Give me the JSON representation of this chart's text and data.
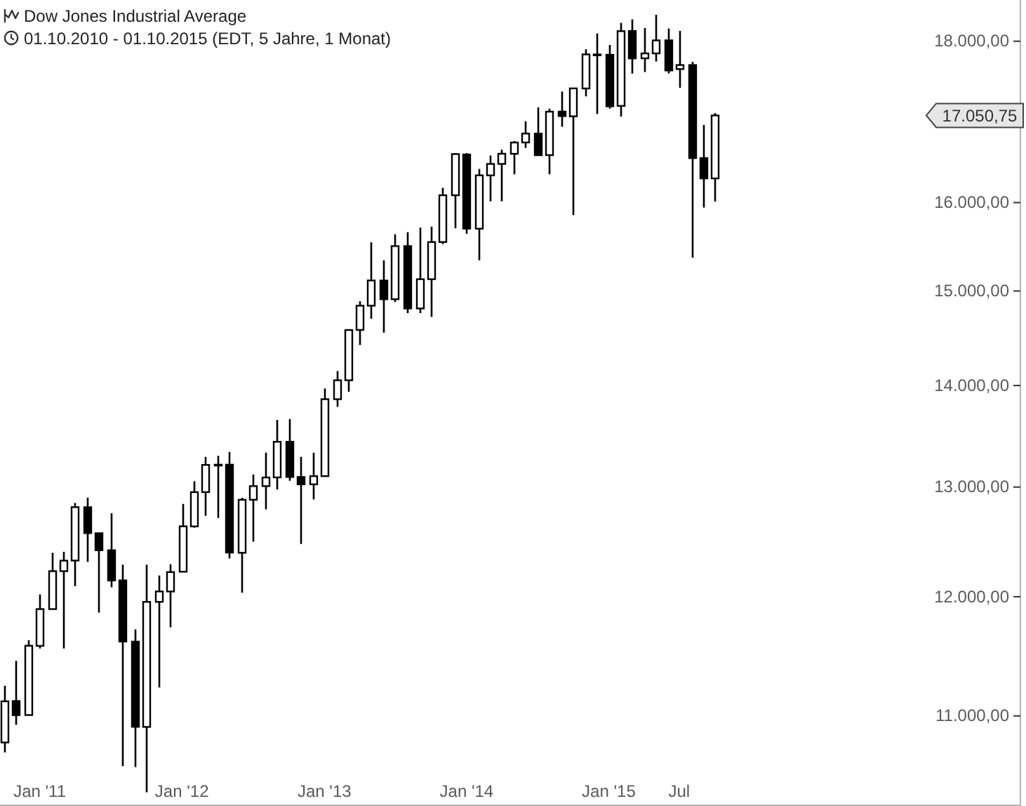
{
  "chart_data": {
    "type": "candlestick",
    "title": "Dow Jones Industrial Average",
    "subtitle": "01.10.2010 - 01.10.2015 (EDT, 5 Jahre, 1 Monat)",
    "x": [
      "2010-10",
      "2010-11",
      "2010-12",
      "2011-01",
      "2011-02",
      "2011-03",
      "2011-04",
      "2011-05",
      "2011-06",
      "2011-07",
      "2011-08",
      "2011-09",
      "2011-10",
      "2011-11",
      "2011-12",
      "2012-01",
      "2012-02",
      "2012-03",
      "2012-04",
      "2012-05",
      "2012-06",
      "2012-07",
      "2012-08",
      "2012-09",
      "2012-10",
      "2012-11",
      "2012-12",
      "2013-01",
      "2013-02",
      "2013-03",
      "2013-04",
      "2013-05",
      "2013-06",
      "2013-07",
      "2013-08",
      "2013-09",
      "2013-10",
      "2013-11",
      "2013-12",
      "2014-01",
      "2014-02",
      "2014-03",
      "2014-04",
      "2014-05",
      "2014-06",
      "2014-07",
      "2014-08",
      "2014-09",
      "2014-10",
      "2014-11",
      "2014-12",
      "2015-01",
      "2015-02",
      "2015-03",
      "2015-04",
      "2015-05",
      "2015-06",
      "2015-07",
      "2015-08",
      "2015-09",
      "2015-10"
    ],
    "ohlc": [
      [
        10789,
        11245,
        10711,
        11118
      ],
      [
        11120,
        11451,
        10929,
        11006
      ],
      [
        11007,
        11625,
        11007,
        11578
      ],
      [
        11577,
        12020,
        11555,
        11892
      ],
      [
        11892,
        12391,
        11891,
        12226
      ],
      [
        12226,
        12400,
        11555,
        12320
      ],
      [
        12321,
        12850,
        12093,
        12811
      ],
      [
        12810,
        12900,
        12309,
        12570
      ],
      [
        12569,
        12570,
        11862,
        12414
      ],
      [
        12414,
        12754,
        12083,
        12143
      ],
      [
        12144,
        12284,
        10604,
        11614
      ],
      [
        11613,
        11717,
        10597,
        10913
      ],
      [
        10912,
        12284,
        10404,
        11955
      ],
      [
        11955,
        12187,
        11231,
        12046
      ],
      [
        12046,
        12288,
        11735,
        12218
      ],
      [
        12221,
        12841,
        12221,
        12633
      ],
      [
        12632,
        13055,
        12620,
        12952
      ],
      [
        12952,
        13289,
        12730,
        13212
      ],
      [
        13212,
        13300,
        12710,
        13214
      ],
      [
        13214,
        13338,
        12340,
        12393
      ],
      [
        12391,
        12898,
        12035,
        12880
      ],
      [
        12880,
        13120,
        12492,
        13009
      ],
      [
        13009,
        13331,
        12790,
        13091
      ],
      [
        13092,
        13653,
        12977,
        13437
      ],
      [
        13437,
        13662,
        13060,
        13096
      ],
      [
        13096,
        13290,
        12471,
        13026
      ],
      [
        13026,
        13330,
        12883,
        13104
      ],
      [
        13104,
        13970,
        13104,
        13861
      ],
      [
        13861,
        14149,
        13784,
        14054
      ],
      [
        14054,
        14585,
        13937,
        14579
      ],
      [
        14580,
        14888,
        14420,
        14840
      ],
      [
        14840,
        15543,
        14700,
        15116
      ],
      [
        15115,
        15340,
        14551,
        14910
      ],
      [
        14911,
        15634,
        14880,
        15500
      ],
      [
        15500,
        15658,
        14760,
        14810
      ],
      [
        14810,
        15710,
        14760,
        15130
      ],
      [
        15130,
        15722,
        14719,
        15546
      ],
      [
        15546,
        16174,
        15523,
        16086
      ],
      [
        16086,
        16589,
        15703,
        16577
      ],
      [
        16572,
        16588,
        15640,
        15699
      ],
      [
        15698,
        16398,
        15340,
        16322
      ],
      [
        16321,
        16560,
        16015,
        16458
      ],
      [
        16458,
        16630,
        16015,
        16581
      ],
      [
        16580,
        16736,
        16334,
        16717
      ],
      [
        16718,
        16978,
        16652,
        16827
      ],
      [
        16827,
        17152,
        16563,
        16563
      ],
      [
        16564,
        17136,
        16334,
        17098
      ],
      [
        17099,
        17351,
        16911,
        17043
      ],
      [
        17040,
        17395,
        15855,
        17391
      ],
      [
        17390,
        17895,
        17290,
        17828
      ],
      [
        17827,
        18103,
        17068,
        17823
      ],
      [
        17823,
        17951,
        17136,
        17165
      ],
      [
        17170,
        18244,
        17037,
        18133
      ],
      [
        18135,
        18289,
        17580,
        17776
      ],
      [
        17777,
        18175,
        17600,
        17841
      ],
      [
        17841,
        18351,
        17736,
        18011
      ],
      [
        18012,
        18168,
        17582,
        17620
      ],
      [
        17638,
        18137,
        17399,
        17690
      ],
      [
        17690,
        17733,
        15370,
        16528
      ],
      [
        16528,
        16933,
        15942,
        16285
      ],
      [
        16285,
        17080,
        16013,
        17050.75
      ]
    ],
    "xlim": [
      "2010-09-21",
      "2017-11-23"
    ],
    "xticks": [
      {
        "value": "2011-01",
        "label": "Jan '11"
      },
      {
        "value": "2012-01",
        "label": "Jan '12"
      },
      {
        "value": "2013-01",
        "label": "Jan '13"
      },
      {
        "value": "2014-01",
        "label": "Jan '14"
      },
      {
        "value": "2015-01",
        "label": "Jan '15"
      },
      {
        "value": "2015-07",
        "label": "Jul"
      }
    ],
    "ylim": [
      10300,
      18550
    ],
    "yticks": [
      {
        "value": 11000,
        "label": "11.000,00"
      },
      {
        "value": 12000,
        "label": "12.000,00"
      },
      {
        "value": 13000,
        "label": "13.000,00"
      },
      {
        "value": 14000,
        "label": "14.000,00"
      },
      {
        "value": 15000,
        "label": "15.000,00"
      },
      {
        "value": 16000,
        "label": "16.000,00"
      },
      {
        "value": 18000,
        "label": "18.000,00"
      }
    ],
    "log": "y",
    "annotations": [
      "17.050,75"
    ]
  }
}
